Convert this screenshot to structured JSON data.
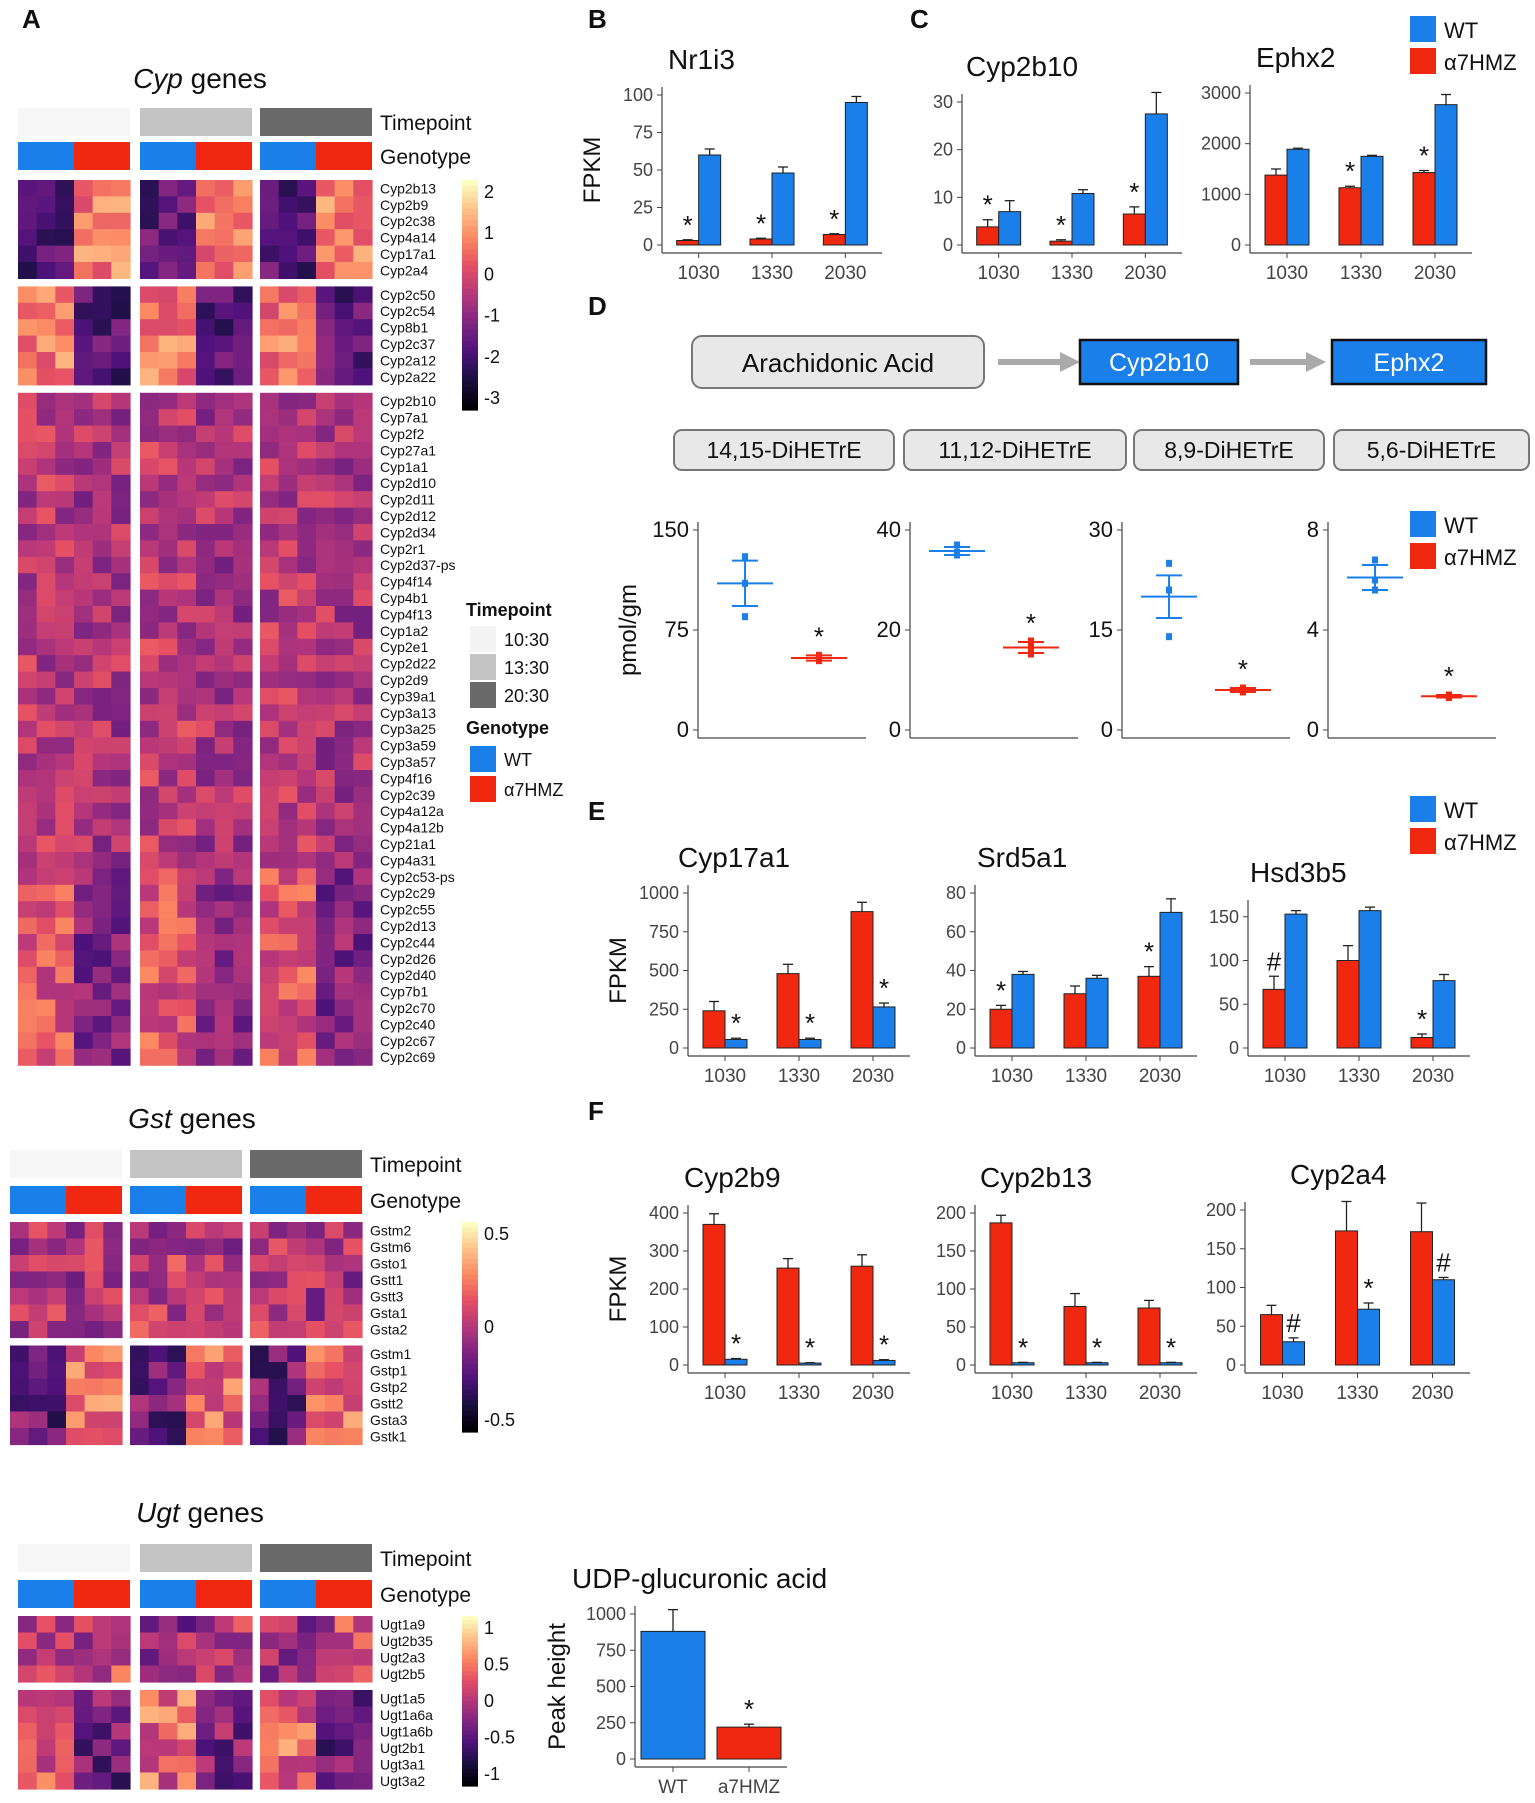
{
  "panel_letters": {
    "A": "A",
    "B": "B",
    "C": "C",
    "D": "D",
    "E": "E",
    "F": "F"
  },
  "colors": {
    "wt": "#1a7fe8",
    "mut": "#f0280f",
    "gray": "#888888",
    "box": "#e8e8e8"
  },
  "legend": {
    "wt": "WT",
    "mut": "α7HMZ"
  },
  "heatmap_legend": {
    "timepoint_title": "Timepoint",
    "genotype_title": "Genotype",
    "tp1": "10:30",
    "tp2": "13:30",
    "tp3": "20:30",
    "wt": "WT",
    "mut": "α7HMZ"
  },
  "heatmaps": [
    {
      "title_italic": "Cyp",
      "title_rest": " genes",
      "annot_tp": "Timepoint",
      "annot_gt": "Genotype",
      "scale": [
        "2",
        "1",
        "0",
        "-1",
        "-2",
        "-3"
      ],
      "genes": [
        "Cyp2b13",
        "Cyp2b9",
        "Cyp2c38",
        "Cyp4a14",
        "Cyp17a1",
        "Cyp2a4",
        "Cyp2c50",
        "Cyp2c54",
        "Cyp8b1",
        "Cyp2c37",
        "Cyp2a12",
        "Cyp2a22",
        "Cyp2b10",
        "Cyp7a1",
        "Cyp2f2",
        "Cyp27a1",
        "Cyp1a1",
        "Cyp2d10",
        "Cyp2d11",
        "Cyp2d12",
        "Cyp2d34",
        "Cyp2r1",
        "Cyp2d37-ps",
        "Cyp4f14",
        "Cyp4b1",
        "Cyp4f13",
        "Cyp1a2",
        "Cyp2e1",
        "Cyp2d22",
        "Cyp2d9",
        "Cyp39a1",
        "Cyp3a13",
        "Cyp3a25",
        "Cyp3a59",
        "Cyp3a57",
        "Cyp4f16",
        "Cyp2c39",
        "Cyp4a12a",
        "Cyp4a12b",
        "Cyp21a1",
        "Cyp4a31",
        "Cyp2c53-ps",
        "Cyp2c29",
        "Cyp2c55",
        "Cyp2d13",
        "Cyp2c44",
        "Cyp2d26",
        "Cyp2d40",
        "Cyp7b1",
        "Cyp2c70",
        "Cyp2c40",
        "Cyp2c67",
        "Cyp2c69"
      ]
    },
    {
      "title_italic": "Gst",
      "title_rest": " genes",
      "annot_tp": "Timepoint",
      "annot_gt": "Genotype",
      "scale": [
        "0.5",
        "0",
        "-0.5"
      ],
      "genes": [
        "Gstm2",
        "Gstm6",
        "Gsto1",
        "Gstt1",
        "Gstt3",
        "Gsta1",
        "Gsta2",
        "Gstm1",
        "Gstp1",
        "Gstp2",
        "Gstt2",
        "Gsta3",
        "Gstk1"
      ]
    },
    {
      "title_italic": "Ugt",
      "title_rest": " genes",
      "annot_tp": "Timepoint",
      "annot_gt": "Genotype",
      "scale": [
        "1",
        "0.5",
        "0",
        "-0.5",
        "-1"
      ],
      "genes": [
        "Ugt1a9",
        "Ugt2b35",
        "Ugt2a3",
        "Ugt2b5",
        "Ugt1a5",
        "Ugt1a6a",
        "Ugt1a6b",
        "Ugt2b1",
        "Ugt3a1",
        "Ugt3a2"
      ]
    }
  ],
  "pathway": {
    "substrate": "Arachidonic Acid",
    "enzyme1": "Cyp2b10",
    "enzyme2": "Ephx2",
    "metabolites": [
      "14,15-DiHETrE",
      "11,12-DiHETrE",
      "8,9-DiHETrE",
      "5,6-DiHETrE"
    ]
  },
  "chart_data": [
    {
      "id": "B",
      "type": "bar",
      "title": "Nr1i3",
      "ylabel": "FPKM",
      "categories": [
        "1030",
        "1330",
        "2030"
      ],
      "ylim": [
        0,
        100
      ],
      "yticks": [
        0,
        25,
        50,
        75,
        100
      ],
      "series": [
        {
          "name": "α7HMZ",
          "values": [
            3,
            4,
            7
          ],
          "err": [
            0.5,
            0.5,
            0.5
          ]
        },
        {
          "name": "WT",
          "values": [
            60,
            48,
            95
          ],
          "err": [
            4,
            4,
            4
          ]
        }
      ],
      "annotations": [
        "*",
        "*",
        "*"
      ]
    },
    {
      "id": "C1",
      "type": "bar",
      "title": "Cyp2b10",
      "ylabel": "",
      "categories": [
        "1030",
        "1330",
        "2030"
      ],
      "ylim": [
        0,
        30
      ],
      "yticks": [
        0,
        10,
        20,
        30
      ],
      "series": [
        {
          "name": "α7HMZ",
          "values": [
            3.8,
            0.8,
            6.5
          ],
          "err": [
            1.5,
            0.3,
            1.5
          ]
        },
        {
          "name": "WT",
          "values": [
            7,
            10.8,
            27.5
          ],
          "err": [
            2.3,
            0.8,
            4.5
          ]
        }
      ],
      "annotations": [
        "*",
        "*",
        "*"
      ]
    },
    {
      "id": "C2",
      "type": "bar",
      "title": "Ephx2",
      "ylabel": "",
      "categories": [
        "1030",
        "1330",
        "2030"
      ],
      "ylim": [
        0,
        3000
      ],
      "yticks": [
        0,
        1000,
        2000,
        3000
      ],
      "series": [
        {
          "name": "α7HMZ",
          "values": [
            1380,
            1130,
            1430
          ],
          "err": [
            120,
            30,
            40
          ]
        },
        {
          "name": "WT",
          "values": [
            1890,
            1750,
            2770
          ],
          "err": [
            20,
            20,
            200
          ]
        }
      ],
      "annotations": [
        "",
        "*",
        "*"
      ]
    },
    {
      "id": "D1",
      "type": "scatter",
      "title": "14,15-DiHETrE",
      "ylabel": "pmol/gm",
      "ylim": [
        0,
        150
      ],
      "yticks": [
        0,
        75,
        150
      ],
      "groups": [
        {
          "name": "WT",
          "points": [
            130,
            110,
            85
          ],
          "mean": 110,
          "err": 17
        },
        {
          "name": "α7HMZ",
          "points": [
            56,
            54,
            52
          ],
          "mean": 54,
          "err": 2
        }
      ],
      "annotation": "*"
    },
    {
      "id": "D2",
      "type": "scatter",
      "title": "11,12-DiHETrE",
      "ylabel": "",
      "ylim": [
        0,
        40
      ],
      "yticks": [
        0,
        20,
        40
      ],
      "groups": [
        {
          "name": "WT",
          "points": [
            37,
            35.5,
            35
          ],
          "mean": 35.8,
          "err": 0.8
        },
        {
          "name": "α7HMZ",
          "points": [
            17.8,
            16.5,
            15.2
          ],
          "mean": 16.5,
          "err": 1.1
        }
      ],
      "annotation": "*"
    },
    {
      "id": "D3",
      "type": "scatter",
      "title": "8,9-DiHETrE",
      "ylabel": "",
      "ylim": [
        0,
        30
      ],
      "yticks": [
        0,
        15,
        30
      ],
      "groups": [
        {
          "name": "WT",
          "points": [
            25,
            21,
            14
          ],
          "mean": 20,
          "err": 3.2
        },
        {
          "name": "α7HMZ",
          "points": [
            6.3,
            6.0,
            5.7
          ],
          "mean": 6.0,
          "err": 0.3
        }
      ],
      "annotation": "*"
    },
    {
      "id": "D4",
      "type": "scatter",
      "title": "5,6-DiHETrE",
      "ylabel": "",
      "ylim": [
        0,
        8
      ],
      "yticks": [
        0,
        4,
        8
      ],
      "groups": [
        {
          "name": "WT",
          "points": [
            6.8,
            6.0,
            5.6
          ],
          "mean": 6.1,
          "err": 0.5
        },
        {
          "name": "α7HMZ",
          "points": [
            1.4,
            1.35,
            1.3
          ],
          "mean": 1.35,
          "err": 0.05
        }
      ],
      "annotation": "*"
    },
    {
      "id": "E1",
      "type": "bar",
      "title": "Cyp17a1",
      "ylabel": "FPKM",
      "categories": [
        "1030",
        "1330",
        "2030"
      ],
      "ylim": [
        0,
        1000
      ],
      "yticks": [
        0,
        250,
        500,
        750,
        1000
      ],
      "series": [
        {
          "name": "α7HMZ",
          "values": [
            240,
            480,
            880
          ],
          "err": [
            60,
            60,
            60
          ]
        },
        {
          "name": "WT",
          "values": [
            55,
            55,
            265
          ],
          "err": [
            8,
            8,
            25
          ]
        }
      ],
      "annotations": [
        "*",
        "*",
        "*"
      ]
    },
    {
      "id": "E2",
      "type": "bar",
      "title": "Srd5a1",
      "ylabel": "",
      "categories": [
        "1030",
        "1330",
        "2030"
      ],
      "ylim": [
        0,
        80
      ],
      "yticks": [
        0,
        20,
        40,
        60,
        80
      ],
      "series": [
        {
          "name": "α7HMZ",
          "values": [
            20,
            28,
            37
          ],
          "err": [
            2,
            4,
            5
          ]
        },
        {
          "name": "WT",
          "values": [
            38,
            36,
            70
          ],
          "err": [
            1.5,
            1.5,
            7
          ]
        }
      ],
      "annotations": [
        "*",
        "",
        "*"
      ]
    },
    {
      "id": "E3",
      "type": "bar",
      "title": "Hsd3b5",
      "ylabel": "",
      "categories": [
        "1030",
        "1330",
        "2030"
      ],
      "ylim": [
        0,
        160
      ],
      "yticks": [
        0,
        50,
        100,
        150
      ],
      "series": [
        {
          "name": "α7HMZ",
          "values": [
            67,
            100,
            12
          ],
          "err": [
            15,
            17,
            4
          ]
        },
        {
          "name": "WT",
          "values": [
            153,
            157,
            77
          ],
          "err": [
            4,
            4,
            7
          ]
        }
      ],
      "annotations": [
        "#",
        "",
        "*"
      ]
    },
    {
      "id": "F1",
      "type": "bar",
      "title": "Cyp2b9",
      "ylabel": "FPKM",
      "categories": [
        "1030",
        "1330",
        "2030"
      ],
      "ylim": [
        0,
        400
      ],
      "yticks": [
        0,
        100,
        200,
        300,
        400
      ],
      "series": [
        {
          "name": "α7HMZ",
          "values": [
            370,
            255,
            260
          ],
          "err": [
            28,
            25,
            30
          ]
        },
        {
          "name": "WT",
          "values": [
            15,
            5,
            12
          ],
          "err": [
            2,
            1,
            2
          ]
        }
      ],
      "annotations": [
        "*",
        "*",
        "*"
      ]
    },
    {
      "id": "F2",
      "type": "bar",
      "title": "Cyp2b13",
      "ylabel": "",
      "categories": [
        "1030",
        "1330",
        "2030"
      ],
      "ylim": [
        0,
        200
      ],
      "yticks": [
        0,
        50,
        100,
        150,
        200
      ],
      "series": [
        {
          "name": "α7HMZ",
          "values": [
            187,
            77,
            75
          ],
          "err": [
            10,
            17,
            10
          ]
        },
        {
          "name": "WT",
          "values": [
            3,
            3,
            3
          ],
          "err": [
            0.5,
            0.5,
            0.5
          ]
        }
      ],
      "annotations": [
        "*",
        "*",
        "*"
      ]
    },
    {
      "id": "F3",
      "type": "bar",
      "title": "Cyp2a4",
      "ylabel": "",
      "categories": [
        "1030",
        "1330",
        "2030"
      ],
      "ylim": [
        0,
        200
      ],
      "yticks": [
        0,
        50,
        100,
        150,
        200
      ],
      "series": [
        {
          "name": "α7HMZ",
          "values": [
            65,
            173,
            172
          ],
          "err": [
            12,
            38,
            37
          ]
        },
        {
          "name": "WT",
          "values": [
            30,
            72,
            110
          ],
          "err": [
            5,
            8,
            3
          ]
        }
      ],
      "annotations": [
        "#",
        "*",
        "#"
      ]
    },
    {
      "id": "G",
      "type": "bar",
      "title": "UDP-glucuronic acid",
      "ylabel": "Peak height",
      "categories": [
        "WT",
        "a7HMZ"
      ],
      "ylim": [
        0,
        1000
      ],
      "yticks": [
        0,
        250,
        500,
        750,
        1000
      ],
      "values": [
        880,
        220
      ],
      "err": [
        150,
        20
      ],
      "annotations": [
        "",
        "*"
      ]
    }
  ]
}
